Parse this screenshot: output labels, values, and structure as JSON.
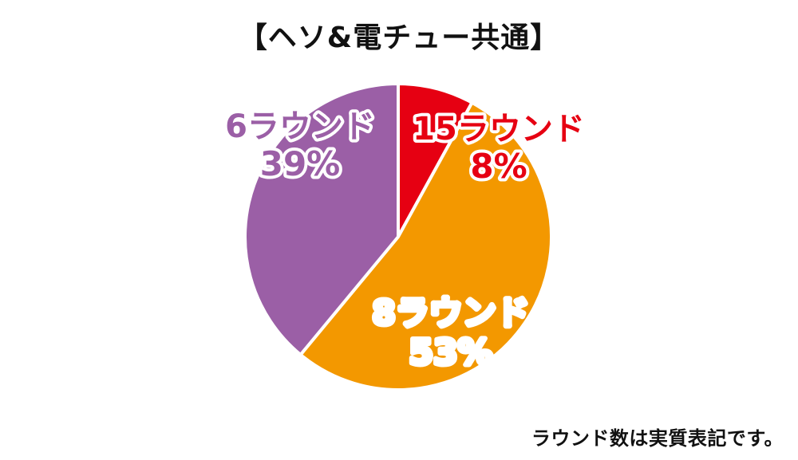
{
  "title": "【ヘソ&電チュー共通】",
  "note": "ラウンド数は実質表記です。",
  "chart_data": {
    "type": "pie",
    "title": "【ヘソ&電チュー共通】",
    "slices": [
      {
        "label": "15ラウンド",
        "value": 8,
        "display": "8%",
        "color": "#e60012"
      },
      {
        "label": "8ラウンド",
        "value": 53,
        "display": "53%",
        "color": "#f39800"
      },
      {
        "label": "6ラウンド",
        "value": 39,
        "display": "39%",
        "color": "#9b5fa6"
      }
    ],
    "start": "12 o'clock",
    "direction": "clockwise",
    "legend": "none",
    "labels": "on-slice"
  }
}
